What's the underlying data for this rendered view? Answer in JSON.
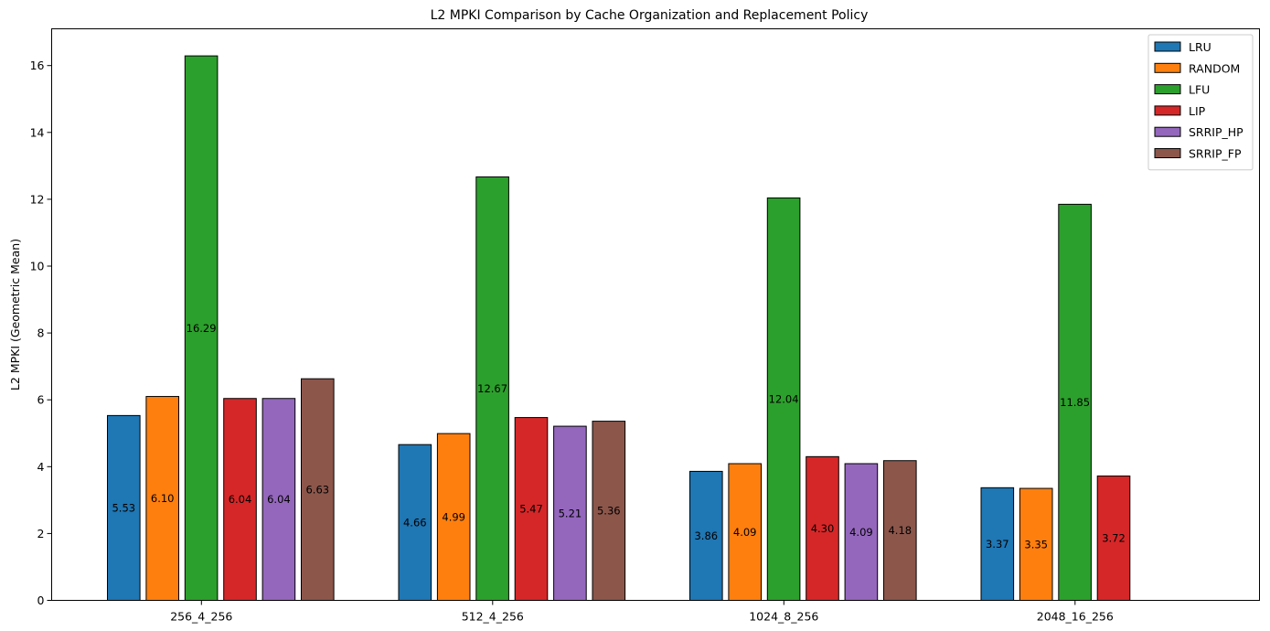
{
  "chart_data": {
    "type": "bar",
    "title": "L2 MPKI Comparison by Cache Organization and Replacement Policy",
    "xlabel": "",
    "ylabel": "L2 MPKI (Geometric Mean)",
    "ylim": [
      0,
      17.1
    ],
    "yticks": [
      0,
      2,
      4,
      6,
      8,
      10,
      12,
      14,
      16
    ],
    "grid": false,
    "legend_position": "top-right",
    "categories": [
      "256_4_256",
      "512_4_256",
      "1024_8_256",
      "2048_16_256"
    ],
    "series": [
      {
        "name": "LRU",
        "color": "#1f77b4",
        "values": [
          5.53,
          4.66,
          3.86,
          3.37
        ],
        "labels": [
          "5.53",
          "4.66",
          "3.86",
          "3.37"
        ]
      },
      {
        "name": "RANDOM",
        "color": "#ff7f0e",
        "values": [
          6.1,
          4.99,
          4.09,
          3.35
        ],
        "labels": [
          "6.10",
          "4.99",
          "4.09",
          "3.35"
        ]
      },
      {
        "name": "LFU",
        "color": "#2ca02c",
        "values": [
          16.29,
          12.67,
          12.04,
          11.85
        ],
        "labels": [
          "16.29",
          "12.67",
          "12.04",
          "11.85"
        ]
      },
      {
        "name": "LIP",
        "color": "#d62728",
        "values": [
          6.04,
          5.47,
          4.3,
          3.72
        ],
        "labels": [
          "6.04",
          "5.47",
          "4.30",
          "3.72"
        ]
      },
      {
        "name": "SRRIP_HP",
        "color": "#9467bd",
        "values": [
          6.04,
          5.21,
          4.09,
          0
        ],
        "labels": [
          "6.04",
          "5.21",
          "4.09",
          ""
        ]
      },
      {
        "name": "SRRIP_FP",
        "color": "#8c564b",
        "values": [
          6.63,
          5.36,
          4.18,
          0
        ],
        "labels": [
          "6.63",
          "5.36",
          "4.18",
          ""
        ]
      }
    ]
  }
}
